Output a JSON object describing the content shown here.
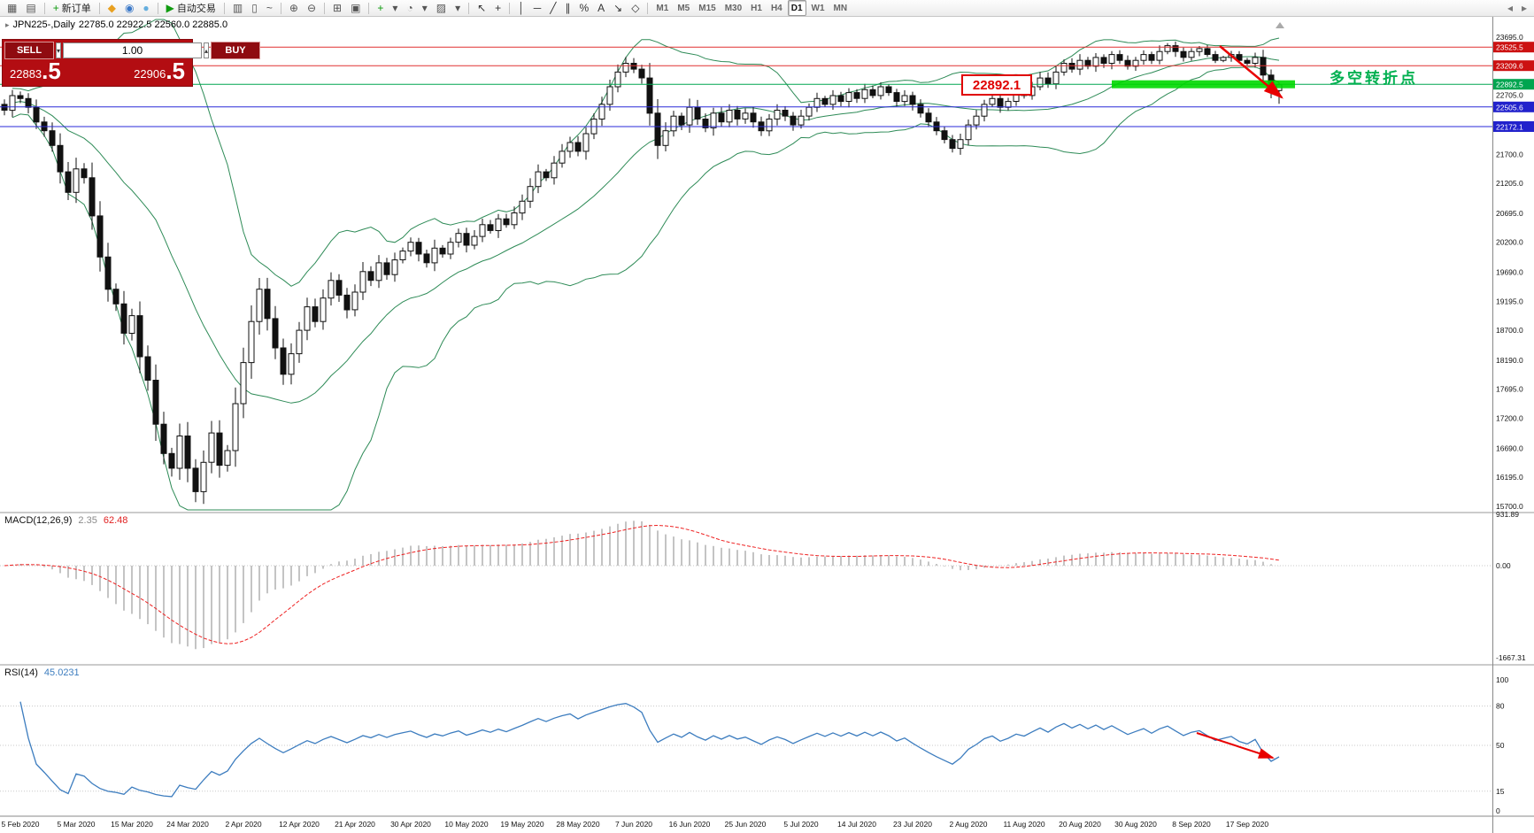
{
  "toolbar": {
    "groups": [
      {
        "items": [
          {
            "name": "new-chart-icon",
            "glyph": "▦",
            "color": "#555"
          },
          {
            "name": "chart-profiles-icon",
            "glyph": "▤",
            "color": "#555"
          }
        ]
      },
      {
        "items": [
          {
            "name": "new-order-button",
            "glyph": "+",
            "color": "#0f9b0f",
            "label": "新订单"
          }
        ]
      },
      {
        "items": [
          {
            "name": "metaeditor-icon",
            "glyph": "◆",
            "color": "#e8a020"
          },
          {
            "name": "market-watch-icon",
            "glyph": "◉",
            "color": "#3a78c8"
          },
          {
            "name": "data-window-icon",
            "glyph": "●",
            "color": "#64aede"
          }
        ]
      },
      {
        "items": [
          {
            "name": "autotrading-button",
            "glyph": "▶",
            "color": "#0f9b0f",
            "label": "自动交易"
          }
        ]
      },
      {
        "items": [
          {
            "name": "bar-chart-icon",
            "glyph": "▥",
            "color": "#555"
          },
          {
            "name": "candlestick-chart-icon",
            "glyph": "▯",
            "color": "#555"
          },
          {
            "name": "line-chart-icon",
            "glyph": "~",
            "color": "#555"
          }
        ]
      },
      {
        "items": [
          {
            "name": "zoom-in-icon",
            "glyph": "⊕",
            "color": "#555"
          },
          {
            "name": "zoom-out-icon",
            "glyph": "⊖",
            "color": "#555"
          }
        ]
      },
      {
        "items": [
          {
            "name": "tile-windows-icon",
            "glyph": "⊞",
            "color": "#555"
          },
          {
            "name": "auto-arrange-icon",
            "glyph": "▣",
            "color": "#555"
          }
        ]
      },
      {
        "items": [
          {
            "name": "indicators-icon",
            "glyph": "+",
            "color": "#0f9b0f"
          },
          {
            "name": "indicators-dropdown-icon",
            "glyph": "▾",
            "color": "#555"
          },
          {
            "name": "periods-icon",
            "glyph": "◔",
            "color": "#555"
          },
          {
            "name": "periods-dropdown-icon",
            "glyph": "▾",
            "color": "#555"
          },
          {
            "name": "templates-icon",
            "glyph": "▨",
            "color": "#555"
          },
          {
            "name": "templates-dropdown-icon",
            "glyph": "▾",
            "color": "#555"
          }
        ]
      },
      {
        "items": [
          {
            "name": "cursor-icon",
            "glyph": "↖",
            "color": "#333"
          },
          {
            "name": "crosshair-icon",
            "glyph": "+",
            "color": "#333"
          }
        ]
      },
      {
        "items": [
          {
            "name": "vertical-line-icon",
            "glyph": "│",
            "color": "#333"
          },
          {
            "name": "horizontal-line-icon",
            "glyph": "─",
            "color": "#333"
          },
          {
            "name": "trendline-icon",
            "glyph": "╱",
            "color": "#333"
          },
          {
            "name": "equidistant-channel-icon",
            "glyph": "∥",
            "color": "#333"
          },
          {
            "name": "fibonacci-icon",
            "glyph": "%",
            "color": "#333"
          },
          {
            "name": "text-label-icon",
            "glyph": "A",
            "color": "#333"
          },
          {
            "name": "arrows-tool-icon",
            "glyph": "↘",
            "color": "#333"
          },
          {
            "name": "shapes-icon",
            "glyph": "◇",
            "color": "#333"
          }
        ]
      }
    ],
    "timeframes": [
      "M1",
      "M5",
      "M15",
      "M30",
      "H1",
      "H4",
      "D1",
      "W1",
      "MN"
    ],
    "active_timeframe": "D1",
    "right_icons": [
      {
        "name": "chart-scroll-icon",
        "glyph": "◂",
        "color": "#777"
      },
      {
        "name": "chart-shift-icon",
        "glyph": "▸",
        "color": "#777"
      }
    ]
  },
  "chart": {
    "icon_glyph": "▸",
    "title_symbol": "JPN225-,Daily",
    "title_ohlc": "22785.0 22922.5 22560.0 22885.0"
  },
  "trade_panel": {
    "sell_label": "SELL",
    "buy_label": "BUY",
    "lot_value": "1.00",
    "spin_down": "▾",
    "spin_up": "▴",
    "sell_price_main": "22883",
    "sell_price_big": ".5",
    "buy_price_main": "22906",
    "buy_price_big": ".5"
  },
  "chart_data": {
    "type": "candlestick",
    "symbol": "JPN225-",
    "period": "Daily",
    "title": "JPN225-,Daily 22785.0 22922.5 22560.0 22885.0",
    "last_ohlc": {
      "open": 22785.0,
      "high": 22922.5,
      "low": 22560.0,
      "close": 22885.0
    },
    "y_axis": {
      "max": 23695.0,
      "min": 15700.0,
      "labels": [
        "23695.0",
        "22705.0",
        "21700.0",
        "21205.0",
        "20695.0",
        "20200.0",
        "19690.0",
        "19195.0",
        "18700.0",
        "18190.0",
        "17695.0",
        "17200.0",
        "16690.0",
        "16195.0",
        "15700.0"
      ]
    },
    "hlines": [
      {
        "price": 23525.5,
        "label": "23525.5",
        "color": "#e03030",
        "label_bg": "#cc1111"
      },
      {
        "price": 23209.6,
        "label": "23209.6",
        "color": "#e03030",
        "label_bg": "#cc1111"
      },
      {
        "price": 22892.5,
        "label": "22892.5",
        "color": "#00a550",
        "label_bg": "#00a550"
      },
      {
        "price": 22505.6,
        "label": "22505.6",
        "color": "#2a2ad8",
        "label_bg": "#2222cc"
      },
      {
        "price": 22172.1,
        "label": "22172.1",
        "color": "#2a2ad8",
        "label_bg": "#2222cc"
      }
    ],
    "bollinger": {
      "period": 20,
      "deviation": 2,
      "color": "#2e8b57"
    },
    "first_open": 22550,
    "closes": [
      22450,
      22700,
      22650,
      22500,
      22250,
      22100,
      21850,
      21400,
      21050,
      21450,
      21300,
      20650,
      19950,
      19400,
      19150,
      18650,
      18950,
      18250,
      17850,
      17100,
      16600,
      16350,
      16900,
      16350,
      15950,
      16450,
      16950,
      16400,
      16650,
      17450,
      18150,
      18850,
      19400,
      18900,
      18400,
      17950,
      18300,
      18700,
      19100,
      18850,
      19250,
      19550,
      19300,
      19050,
      19350,
      19700,
      19550,
      19850,
      19650,
      19900,
      20050,
      20200,
      20000,
      19850,
      20100,
      20000,
      20200,
      20350,
      20150,
      20300,
      20500,
      20400,
      20600,
      20500,
      20700,
      20900,
      21150,
      21400,
      21300,
      21550,
      21750,
      21900,
      21750,
      22050,
      22300,
      22550,
      22850,
      23100,
      23250,
      23150,
      23000,
      22400,
      21850,
      22100,
      22350,
      22200,
      22500,
      22300,
      22150,
      22400,
      22250,
      22450,
      22300,
      22400,
      22250,
      22100,
      22300,
      22450,
      22350,
      22200,
      22350,
      22500,
      22650,
      22550,
      22700,
      22600,
      22750,
      22650,
      22800,
      22700,
      22850,
      22750,
      22600,
      22700,
      22550,
      22400,
      22250,
      22100,
      21950,
      21800,
      21950,
      22200,
      22350,
      22550,
      22650,
      22500,
      22600,
      22750,
      22700,
      22850,
      23000,
      22900,
      23100,
      23250,
      23150,
      23300,
      23200,
      23350,
      23250,
      23400,
      23300,
      23200,
      23300,
      23400,
      23300,
      23450,
      23550,
      23450,
      23350,
      23450,
      23500,
      23400,
      23300,
      23350,
      23400,
      23300,
      23250,
      23350,
      23050,
      22790,
      22885
    ],
    "date_labels": [
      "5 Feb 2020",
      "5 Mar 2020",
      "15 Mar 2020",
      "24 Mar 2020",
      "2 Apr 2020",
      "12 Apr 2020",
      "21 Apr 2020",
      "30 Apr 2020",
      "10 May 2020",
      "19 May 2020",
      "28 May 2020",
      "7 Jun 2020",
      "16 Jun 2020",
      "25 Jun 2020",
      "5 Jul 2020",
      "14 Jul 2020",
      "23 Jul 2020",
      "2 Aug 2020",
      "11 Aug 2020",
      "20 Aug 2020",
      "30 Aug 2020",
      "8 Sep 2020",
      "17 Sep 2020"
    ],
    "indicators": {
      "macd": {
        "name": "MACD(12,26,9)",
        "fast": 12,
        "slow": 26,
        "signal": 9,
        "value_main": "2.35",
        "value_signal": "62.48",
        "axis_labels": [
          "931.89",
          "0.00",
          "-1667.31"
        ],
        "histogram_color": "#ababab",
        "signal_color": "#ee2222"
      },
      "rsi": {
        "name": "RSI(14)",
        "period": 14,
        "value": "45.0231",
        "axis_labels": [
          "100",
          "80",
          "50",
          "15",
          "0"
        ],
        "level_lines": [
          80,
          50,
          15
        ],
        "color": "#3d7dbf"
      }
    },
    "annotations": {
      "price_flag": {
        "text": "22892.1",
        "color": "#e00000"
      },
      "note_text": {
        "text": "多空转折点",
        "color": "#00b050"
      },
      "support_zone": {
        "start_index": 139,
        "end_index": 162,
        "price": 22892.5,
        "color": "#00d800"
      },
      "trend_arrow_main": {
        "color": "#e80000"
      },
      "trend_arrow_rsi": {
        "color": "#e80000"
      }
    }
  }
}
